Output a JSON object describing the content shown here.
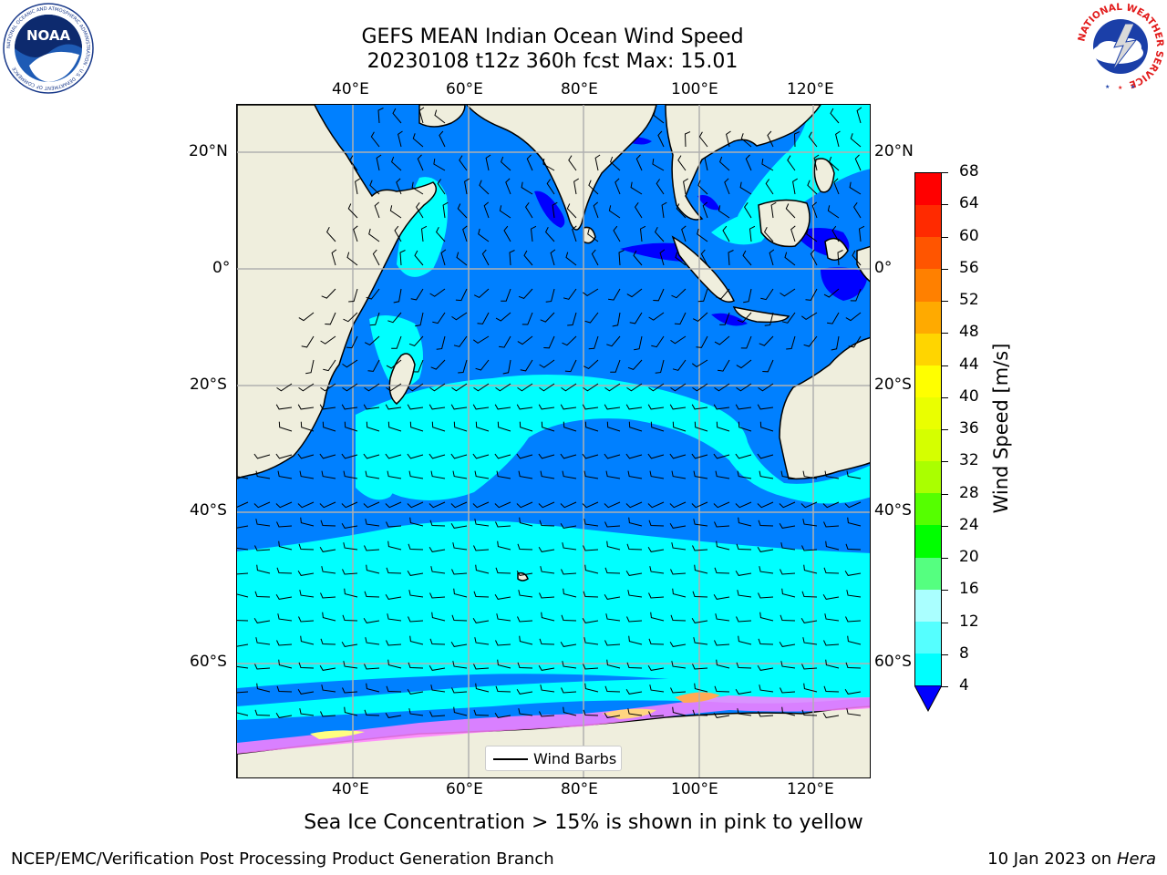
{
  "header": {
    "title_line1": "GEFS MEAN Indian Ocean Wind Speed",
    "title_line2": "20230108 t12z 360h fcst   Max: 15.01"
  },
  "logos": {
    "noaa_text": "NOAA",
    "noaa_ring_text": "NATIONAL OCEANIC AND ATMOSPHERIC ADMINISTRATION · U.S. DEPARTMENT OF COMMERCE",
    "nws_ring_text": "NATIONAL WEATHER SERVICE"
  },
  "map": {
    "top_lon_labels": [
      "40°E",
      "60°E",
      "80°E",
      "100°E",
      "120°E"
    ],
    "bottom_lon_labels": [
      "40°E",
      "60°E",
      "80°E",
      "100°E",
      "120°E"
    ],
    "left_lat_labels": [
      "20°N",
      "0°",
      "20°S",
      "40°S",
      "60°S"
    ],
    "right_lat_labels": [
      "20°N",
      "0°",
      "20°S",
      "40°S",
      "60°S"
    ],
    "legend_label": "Wind Barbs",
    "colors": {
      "land": "#efeedd",
      "ocean_4_8": "#0080ff",
      "ocean_8_12": "#00ffff",
      "ocean_lt4": "#0000ff",
      "sea_ice": "#ff80ff",
      "gridline": "#b0b0b0"
    }
  },
  "colorbar": {
    "label": "Wind Speed [m/s]",
    "ticks": [
      "68",
      "64",
      "60",
      "56",
      "52",
      "48",
      "44",
      "40",
      "36",
      "32",
      "28",
      "24",
      "20",
      "16",
      "12",
      "8",
      "4"
    ],
    "colors": [
      "#ff0000",
      "#ff2a00",
      "#ff5500",
      "#ff8000",
      "#ffaa00",
      "#ffd500",
      "#ffff00",
      "#eaff00",
      "#d5ff00",
      "#aaff00",
      "#55ff00",
      "#00ff00",
      "#55ff80",
      "#aaffff",
      "#55ffff",
      "#00ffff",
      "#0080ff"
    ],
    "under_color": "#0000ff"
  },
  "subtitle": "Sea Ice Concentration > 15% is shown in pink to yellow",
  "footer": {
    "left": "NCEP/EMC/Verification Post Processing Product Generation Branch",
    "right_date": "10 Jan 2023 on",
    "right_host": "Hera"
  }
}
